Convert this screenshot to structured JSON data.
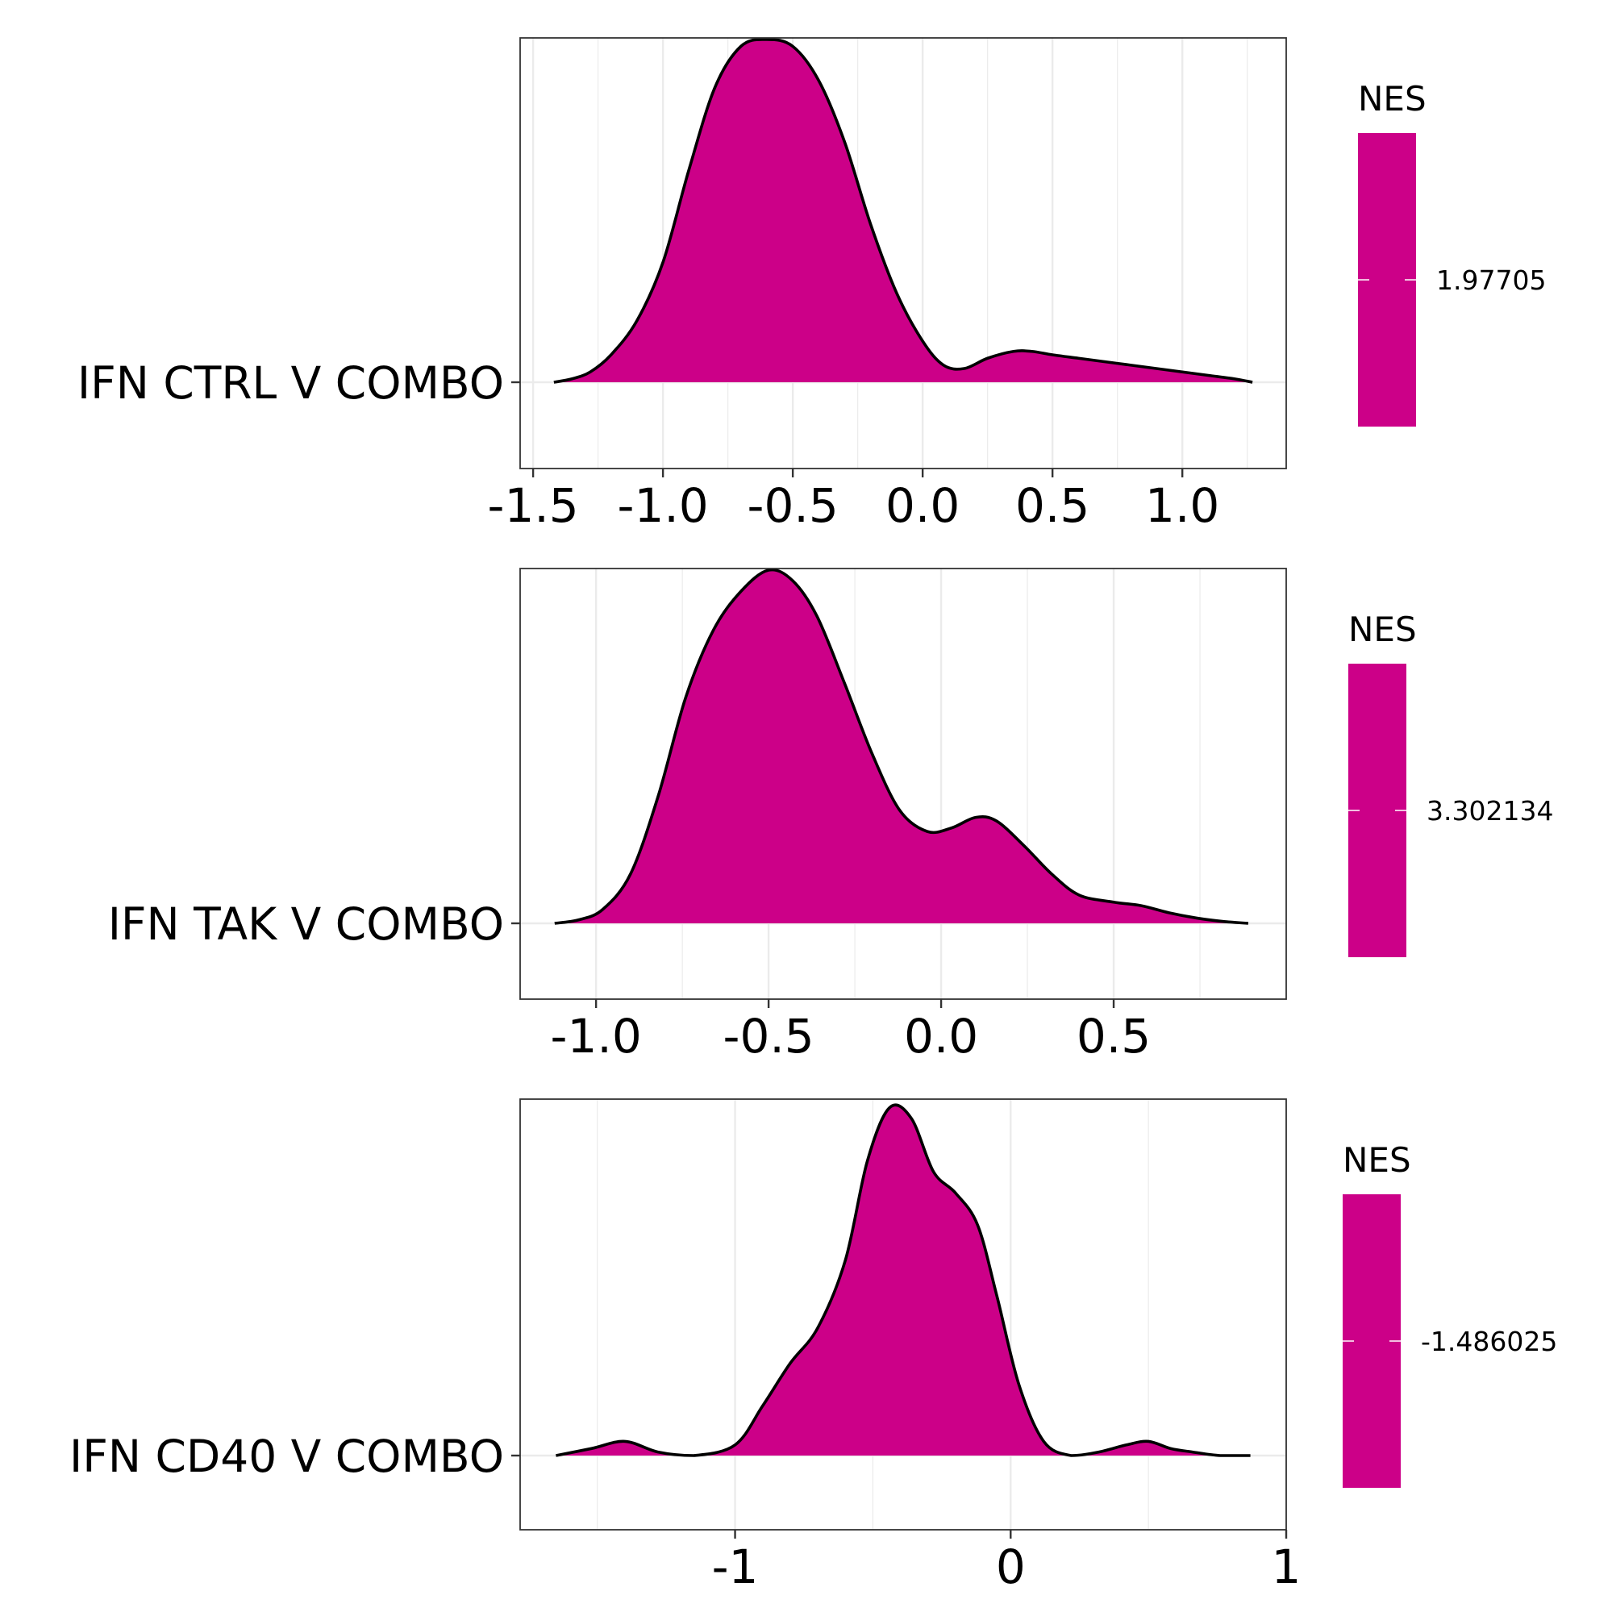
{
  "fill_color": "#CC0088",
  "chart_data": [
    {
      "type": "density",
      "y_label": "IFN CTRL V COMBO",
      "legend": {
        "title": "NES",
        "value": "1.97705"
      },
      "x_ticks": [
        -1.5,
        -1.0,
        -0.5,
        0.0,
        0.5,
        1.0
      ],
      "x_tick_labels": [
        "-1.5",
        "-1.0",
        "-0.5",
        "0.0",
        "0.5",
        "1.0"
      ],
      "xlim": [
        -1.55,
        1.4
      ],
      "x_minor_ticks": [
        -1.25,
        -0.75,
        -0.25,
        0.25,
        0.75,
        1.25
      ],
      "density_x": [
        -1.42,
        -1.35,
        -1.28,
        -1.2,
        -1.1,
        -1.0,
        -0.9,
        -0.8,
        -0.7,
        -0.6,
        -0.5,
        -0.4,
        -0.3,
        -0.2,
        -0.1,
        0.0,
        0.08,
        0.16,
        0.25,
        0.35,
        0.42,
        0.5,
        0.6,
        0.7,
        0.8,
        0.9,
        1.0,
        1.1,
        1.2,
        1.27
      ],
      "density_y": [
        0.0,
        0.01,
        0.03,
        0.08,
        0.18,
        0.35,
        0.62,
        0.86,
        0.98,
        1.0,
        0.98,
        0.88,
        0.7,
        0.46,
        0.26,
        0.12,
        0.05,
        0.04,
        0.07,
        0.09,
        0.09,
        0.08,
        0.07,
        0.06,
        0.05,
        0.04,
        0.03,
        0.02,
        0.01,
        0.0
      ]
    },
    {
      "type": "density",
      "y_label": "IFN TAK V COMBO",
      "legend": {
        "title": "NES",
        "value": "3.302134"
      },
      "x_ticks": [
        -1.0,
        -0.5,
        0.0,
        0.5
      ],
      "x_tick_labels": [
        "-1.0",
        "-0.5",
        "0.0",
        "0.5"
      ],
      "xlim": [
        -1.22,
        1.0
      ],
      "x_minor_ticks": [
        -0.75,
        -0.25,
        0.25,
        0.75
      ],
      "density_x": [
        -1.12,
        -1.05,
        -0.98,
        -0.9,
        -0.82,
        -0.74,
        -0.66,
        -0.58,
        -0.5,
        -0.43,
        -0.36,
        -0.28,
        -0.2,
        -0.12,
        -0.04,
        0.03,
        0.1,
        0.16,
        0.24,
        0.32,
        0.4,
        0.5,
        0.58,
        0.66,
        0.74,
        0.82,
        0.89
      ],
      "density_y": [
        0.0,
        0.01,
        0.04,
        0.14,
        0.36,
        0.64,
        0.83,
        0.94,
        1.0,
        0.97,
        0.87,
        0.68,
        0.48,
        0.32,
        0.26,
        0.27,
        0.3,
        0.29,
        0.22,
        0.14,
        0.08,
        0.06,
        0.05,
        0.03,
        0.015,
        0.005,
        0.0
      ]
    },
    {
      "type": "density",
      "y_label": "IFN CD40 V COMBO",
      "legend": {
        "title": "NES",
        "value": "-1.486025"
      },
      "x_ticks": [
        -1,
        0,
        1
      ],
      "x_tick_labels": [
        "-1",
        "0",
        "1"
      ],
      "xlim": [
        -1.78,
        1.0
      ],
      "x_minor_ticks": [
        -1.5,
        -0.5,
        0.5
      ],
      "density_x": [
        -1.65,
        -1.52,
        -1.4,
        -1.28,
        -1.15,
        -1.0,
        -0.9,
        -0.8,
        -0.7,
        -0.6,
        -0.52,
        -0.44,
        -0.36,
        -0.28,
        -0.2,
        -0.12,
        -0.05,
        0.03,
        0.12,
        0.22,
        0.32,
        0.42,
        0.5,
        0.58,
        0.66,
        0.76,
        0.87
      ],
      "density_y": [
        0.0,
        0.02,
        0.04,
        0.01,
        0.0,
        0.03,
        0.14,
        0.26,
        0.36,
        0.55,
        0.83,
        0.98,
        0.95,
        0.8,
        0.74,
        0.65,
        0.45,
        0.2,
        0.04,
        0.0,
        0.01,
        0.03,
        0.04,
        0.02,
        0.01,
        0.0,
        0.0
      ]
    }
  ]
}
